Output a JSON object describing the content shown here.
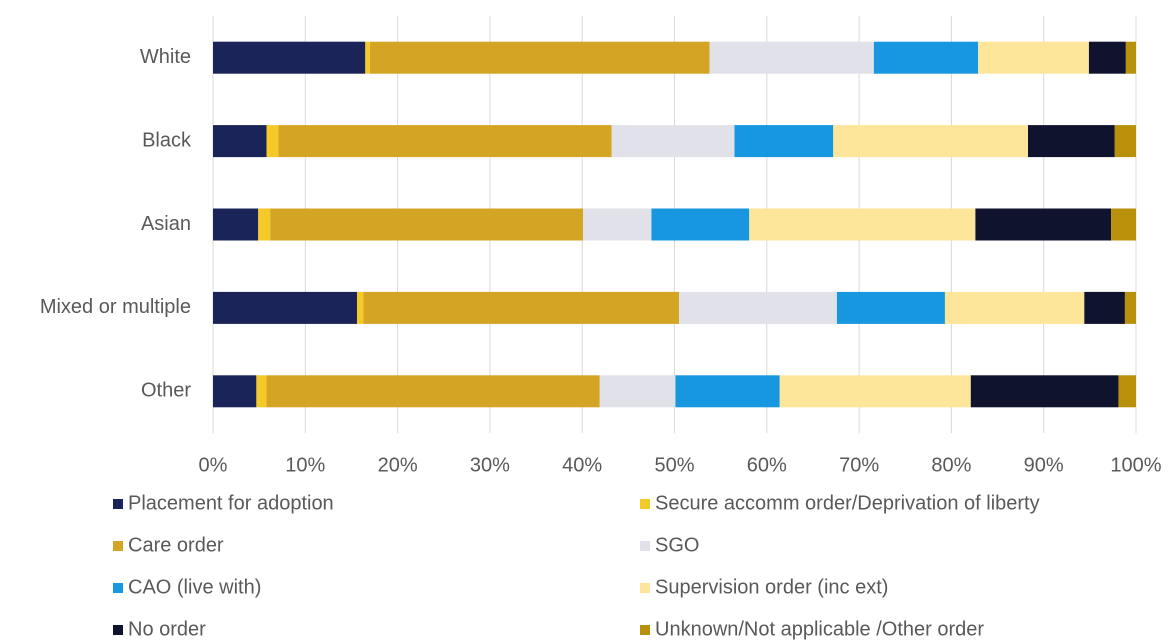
{
  "chart_data": {
    "type": "stacked_barh",
    "categories": [
      "White",
      "Black",
      "Asian",
      "Mixed or multiple",
      "Other"
    ],
    "series": [
      {
        "name": "Placement for adoption",
        "color": "#1b2459",
        "values": [
          16.5,
          5.8,
          4.9,
          15.6,
          4.7
        ]
      },
      {
        "name": "Secure accomm order/Deprivation of liberty",
        "color": "#f5c928",
        "values": [
          0.5,
          1.3,
          1.3,
          0.7,
          1.1
        ]
      },
      {
        "name": "Care order",
        "color": "#d4a424",
        "values": [
          36.8,
          36.1,
          33.9,
          34.2,
          36.1
        ]
      },
      {
        "name": "SGO",
        "color": "#e1e1ea",
        "values": [
          17.8,
          13.3,
          7.4,
          17.1,
          8.2
        ]
      },
      {
        "name": "CAO (live with)",
        "color": "#1797e0",
        "values": [
          11.3,
          10.7,
          10.6,
          11.7,
          11.3
        ]
      },
      {
        "name": "Supervision order (inc ext)",
        "color": "#fde59a",
        "values": [
          12.0,
          21.1,
          24.5,
          15.1,
          20.7
        ]
      },
      {
        "name": "No order",
        "color": "#10132e",
        "values": [
          4.0,
          9.4,
          14.7,
          4.4,
          16.0
        ]
      },
      {
        "name": "Unknown/Not applicable /Other order",
        "color": "#b8900a",
        "values": [
          1.1,
          2.3,
          2.7,
          1.2,
          1.9
        ]
      }
    ],
    "xlim": [
      0,
      100
    ],
    "xticks": [
      {
        "value": 0,
        "label": "0%"
      },
      {
        "value": 10,
        "label": "10%"
      },
      {
        "value": 20,
        "label": "20%"
      },
      {
        "value": 30,
        "label": "30%"
      },
      {
        "value": 40,
        "label": "40%"
      },
      {
        "value": 50,
        "label": "50%"
      },
      {
        "value": 60,
        "label": "60%"
      },
      {
        "value": 70,
        "label": "70%"
      },
      {
        "value": 80,
        "label": "80%"
      },
      {
        "value": 90,
        "label": "90%"
      },
      {
        "value": 100,
        "label": "100%"
      }
    ],
    "grid": true,
    "legend": "bottom"
  }
}
